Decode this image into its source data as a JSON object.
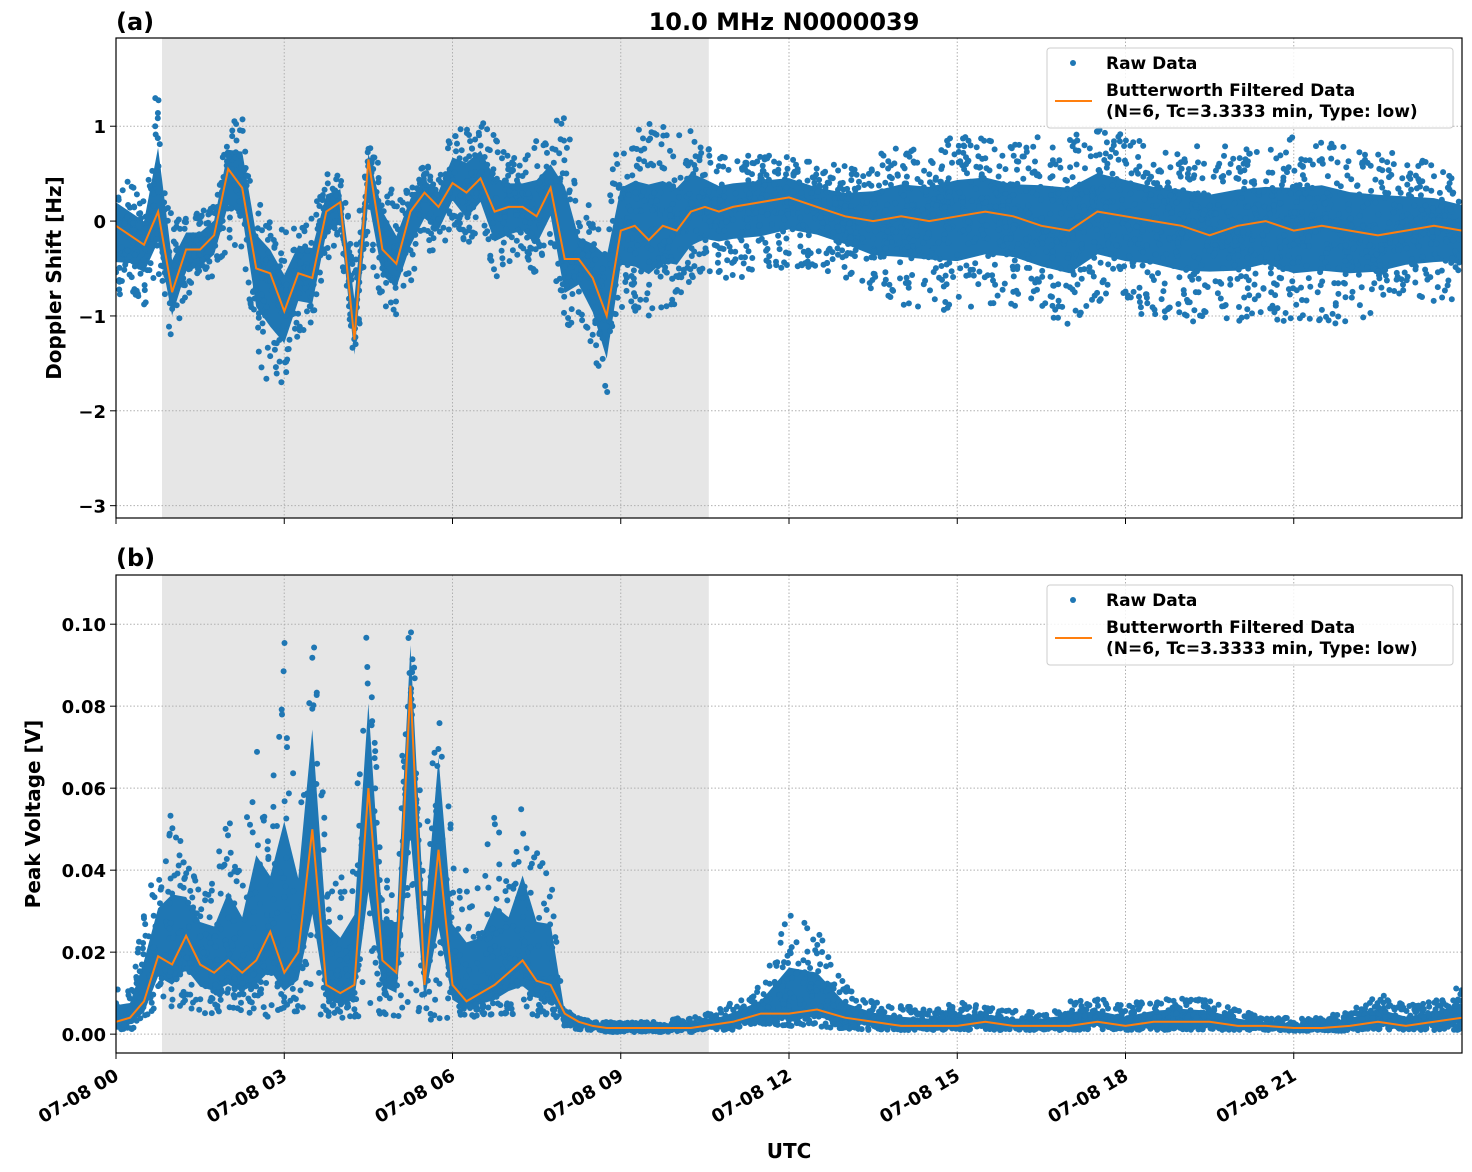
{
  "chart_data": {
    "title": "10.0 MHz N0000039",
    "xlabel": "UTC",
    "x_unit": "hours UTC on 07-08",
    "xlim": [
      0,
      24
    ],
    "xticks": [
      0,
      3,
      6,
      9,
      12,
      15,
      18,
      21
    ],
    "xtick_labels": [
      "07-08 00",
      "07-08 03",
      "07-08 06",
      "07-08 09",
      "07-08 12",
      "07-08 15",
      "07-08 18",
      "07-08 21"
    ],
    "grid": true,
    "shaded_interval": [
      0.82,
      10.57
    ],
    "colors": {
      "raw": "#1f77b4",
      "filtered": "#ff7f0e",
      "shade": "#e6e6e6"
    },
    "x": [
      0,
      0.25,
      0.5,
      0.75,
      1,
      1.25,
      1.5,
      1.75,
      2,
      2.25,
      2.5,
      2.75,
      3,
      3.25,
      3.5,
      3.75,
      4,
      4.25,
      4.5,
      4.75,
      5,
      5.25,
      5.5,
      5.75,
      6,
      6.25,
      6.5,
      6.75,
      7,
      7.25,
      7.5,
      7.75,
      8,
      8.25,
      8.5,
      8.75,
      9,
      9.25,
      9.5,
      9.75,
      10,
      10.25,
      10.5,
      10.75,
      11,
      11.5,
      12,
      12.5,
      13,
      13.5,
      14,
      14.5,
      15,
      15.5,
      16,
      16.5,
      17,
      17.5,
      18,
      18.5,
      19,
      19.5,
      20,
      20.5,
      21,
      21.5,
      22,
      22.5,
      23,
      23.5,
      24
    ],
    "panels": [
      {
        "type": "scatter+line",
        "label": "(a)",
        "ylabel": "Doppler Shift [Hz]",
        "ylim": [
          -3.13,
          1.93
        ],
        "yticks": [
          1,
          0,
          -1,
          -2,
          -3
        ],
        "ytick_labels": [
          "1",
          "0",
          "−1",
          "−2",
          "−3"
        ],
        "legend": {
          "placement": "top-right",
          "raw": "Raw Data",
          "filtered_line1": "Butterworth Filtered Data",
          "filtered_line2": "(N=6, Tc=3.3333 min, Type: low)"
        },
        "filtered": [
          -0.05,
          -0.15,
          -0.25,
          0.1,
          -0.75,
          -0.3,
          -0.3,
          -0.15,
          0.55,
          0.35,
          -0.5,
          -0.55,
          -0.95,
          -0.55,
          -0.6,
          0.1,
          0.2,
          -1.25,
          0.65,
          -0.3,
          -0.45,
          0.1,
          0.3,
          0.15,
          0.4,
          0.3,
          0.45,
          0.1,
          0.15,
          0.15,
          0.05,
          0.35,
          -0.4,
          -0.4,
          -0.6,
          -1.0,
          -0.1,
          -0.05,
          -0.2,
          -0.05,
          -0.1,
          0.1,
          0.15,
          0.1,
          0.15,
          0.2,
          0.25,
          0.15,
          0.05,
          0.0,
          0.05,
          0.0,
          0.05,
          0.1,
          0.05,
          -0.05,
          -0.1,
          0.1,
          0.05,
          0.0,
          -0.05,
          -0.15,
          -0.05,
          0.0,
          -0.1,
          -0.05,
          -0.1,
          -0.15,
          -0.1,
          -0.05,
          -0.1
        ],
        "raw_min": [
          -0.9,
          -0.8,
          -0.9,
          -0.6,
          -1.3,
          -0.8,
          -0.7,
          -0.6,
          -0.3,
          -0.3,
          -1.4,
          -1.8,
          -1.7,
          -1.2,
          -1.2,
          -0.4,
          -0.3,
          -1.6,
          -0.3,
          -0.9,
          -1.0,
          -0.7,
          -0.3,
          -0.4,
          0.0,
          -0.3,
          -0.1,
          -0.6,
          -0.5,
          -0.4,
          -0.6,
          -0.3,
          -1.2,
          -1.0,
          -1.4,
          -2.0,
          -0.9,
          -1.0,
          -1.0,
          -0.9,
          -0.9,
          -0.7,
          -0.6,
          -0.6,
          -0.6,
          -0.6,
          -0.5,
          -0.5,
          -0.6,
          -0.8,
          -0.9,
          -0.9,
          -1.0,
          -0.9,
          -0.9,
          -1.0,
          -1.1,
          -0.9,
          -1.0,
          -1.0,
          -1.1,
          -1.0,
          -1.1,
          -1.0,
          -1.1,
          -1.1,
          -1.1,
          -1.0,
          -0.9,
          -0.9,
          -0.8
        ],
        "raw_max": [
          0.5,
          0.4,
          0.3,
          1.6,
          0.0,
          0.1,
          0.1,
          0.2,
          1.0,
          1.2,
          0.3,
          0.0,
          -0.1,
          0.1,
          0.1,
          0.5,
          0.5,
          -0.3,
          0.8,
          0.6,
          0.2,
          0.4,
          0.6,
          0.5,
          1.0,
          1.0,
          1.1,
          0.9,
          0.7,
          0.7,
          0.9,
          0.9,
          1.3,
          0.1,
          0.2,
          0.4,
          0.9,
          1.0,
          1.1,
          1.0,
          0.9,
          1.0,
          0.8,
          0.7,
          0.7,
          0.7,
          0.7,
          0.6,
          0.6,
          0.7,
          0.8,
          0.8,
          0.9,
          0.9,
          0.8,
          0.9,
          0.9,
          1.0,
          0.9,
          0.8,
          0.8,
          0.8,
          0.8,
          0.8,
          0.9,
          0.9,
          0.8,
          0.8,
          0.7,
          0.6,
          0.5
        ]
      },
      {
        "type": "scatter+line",
        "label": "(b)",
        "ylabel": "Peak Voltage [V]",
        "ylim": [
          -0.0046,
          0.112
        ],
        "yticks": [
          0.1,
          0.08,
          0.06,
          0.04,
          0.02,
          0.0
        ],
        "ytick_labels": [
          "0.10",
          "0.08",
          "0.06",
          "0.04",
          "0.02",
          "0.00"
        ],
        "legend": {
          "placement": "top-right",
          "raw": "Raw Data",
          "filtered_line1": "Butterworth Filtered Data",
          "filtered_line2": "(N=6, Tc=3.3333 min, Type: low)"
        },
        "filtered": [
          0.003,
          0.004,
          0.008,
          0.019,
          0.017,
          0.024,
          0.017,
          0.015,
          0.018,
          0.015,
          0.018,
          0.025,
          0.015,
          0.02,
          0.05,
          0.012,
          0.01,
          0.012,
          0.06,
          0.018,
          0.015,
          0.085,
          0.012,
          0.045,
          0.012,
          0.008,
          0.01,
          0.012,
          0.015,
          0.018,
          0.013,
          0.012,
          0.005,
          0.003,
          0.002,
          0.0015,
          0.0015,
          0.0015,
          0.0015,
          0.0015,
          0.0015,
          0.0015,
          0.002,
          0.0025,
          0.003,
          0.005,
          0.005,
          0.006,
          0.004,
          0.003,
          0.002,
          0.002,
          0.002,
          0.003,
          0.002,
          0.002,
          0.002,
          0.003,
          0.002,
          0.003,
          0.003,
          0.003,
          0.002,
          0.002,
          0.0015,
          0.0015,
          0.002,
          0.003,
          0.002,
          0.003,
          0.004
        ],
        "raw_min": [
          0.001,
          0.001,
          0.002,
          0.008,
          0.006,
          0.006,
          0.005,
          0.005,
          0.005,
          0.005,
          0.005,
          0.004,
          0.005,
          0.005,
          0.004,
          0.004,
          0.004,
          0.004,
          0.004,
          0.004,
          0.004,
          0.004,
          0.004,
          0.003,
          0.004,
          0.004,
          0.004,
          0.004,
          0.005,
          0.004,
          0.004,
          0.005,
          0.002,
          0.001,
          0.001,
          0.0005,
          0.0005,
          0.0005,
          0.0005,
          0.0005,
          0.0005,
          0.0005,
          0.0008,
          0.001,
          0.001,
          0.002,
          0.002,
          0.002,
          0.001,
          0.001,
          0.001,
          0.001,
          0.001,
          0.001,
          0.001,
          0.001,
          0.001,
          0.001,
          0.001,
          0.001,
          0.001,
          0.001,
          0.001,
          0.001,
          0.0008,
          0.0008,
          0.0008,
          0.001,
          0.001,
          0.001,
          0.001
        ],
        "raw_max": [
          0.012,
          0.012,
          0.03,
          0.045,
          0.055,
          0.045,
          0.04,
          0.04,
          0.055,
          0.045,
          0.075,
          0.055,
          0.097,
          0.06,
          0.104,
          0.045,
          0.04,
          0.05,
          0.106,
          0.04,
          0.04,
          0.107,
          0.045,
          0.095,
          0.045,
          0.04,
          0.04,
          0.055,
          0.045,
          0.064,
          0.045,
          0.045,
          0.006,
          0.004,
          0.003,
          0.003,
          0.003,
          0.003,
          0.003,
          0.003,
          0.004,
          0.004,
          0.005,
          0.006,
          0.008,
          0.012,
          0.03,
          0.026,
          0.012,
          0.008,
          0.007,
          0.006,
          0.008,
          0.007,
          0.006,
          0.006,
          0.008,
          0.009,
          0.007,
          0.009,
          0.01,
          0.009,
          0.006,
          0.004,
          0.004,
          0.004,
          0.006,
          0.01,
          0.007,
          0.008,
          0.012
        ]
      }
    ]
  }
}
